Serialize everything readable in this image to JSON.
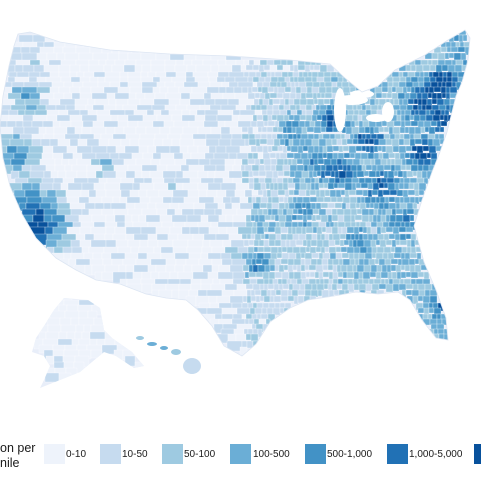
{
  "map": {
    "region": "United States, population density by county",
    "land_color": "#e8eef9",
    "state_line_color": "#ffffff"
  },
  "legend": {
    "title_line1": "on per",
    "title_line2": "nile",
    "items": [
      {
        "label": "0-10",
        "color": "#eef3fb"
      },
      {
        "label": "10-50",
        "color": "#c6dbef"
      },
      {
        "label": "50-100",
        "color": "#9ecae1"
      },
      {
        "label": "100-500",
        "color": "#6baed6"
      },
      {
        "label": "500-1,000",
        "color": "#4292c6"
      },
      {
        "label": "1,000-5,000",
        "color": "#2171b5"
      },
      {
        "label": "",
        "color": "#08519c"
      }
    ]
  }
}
